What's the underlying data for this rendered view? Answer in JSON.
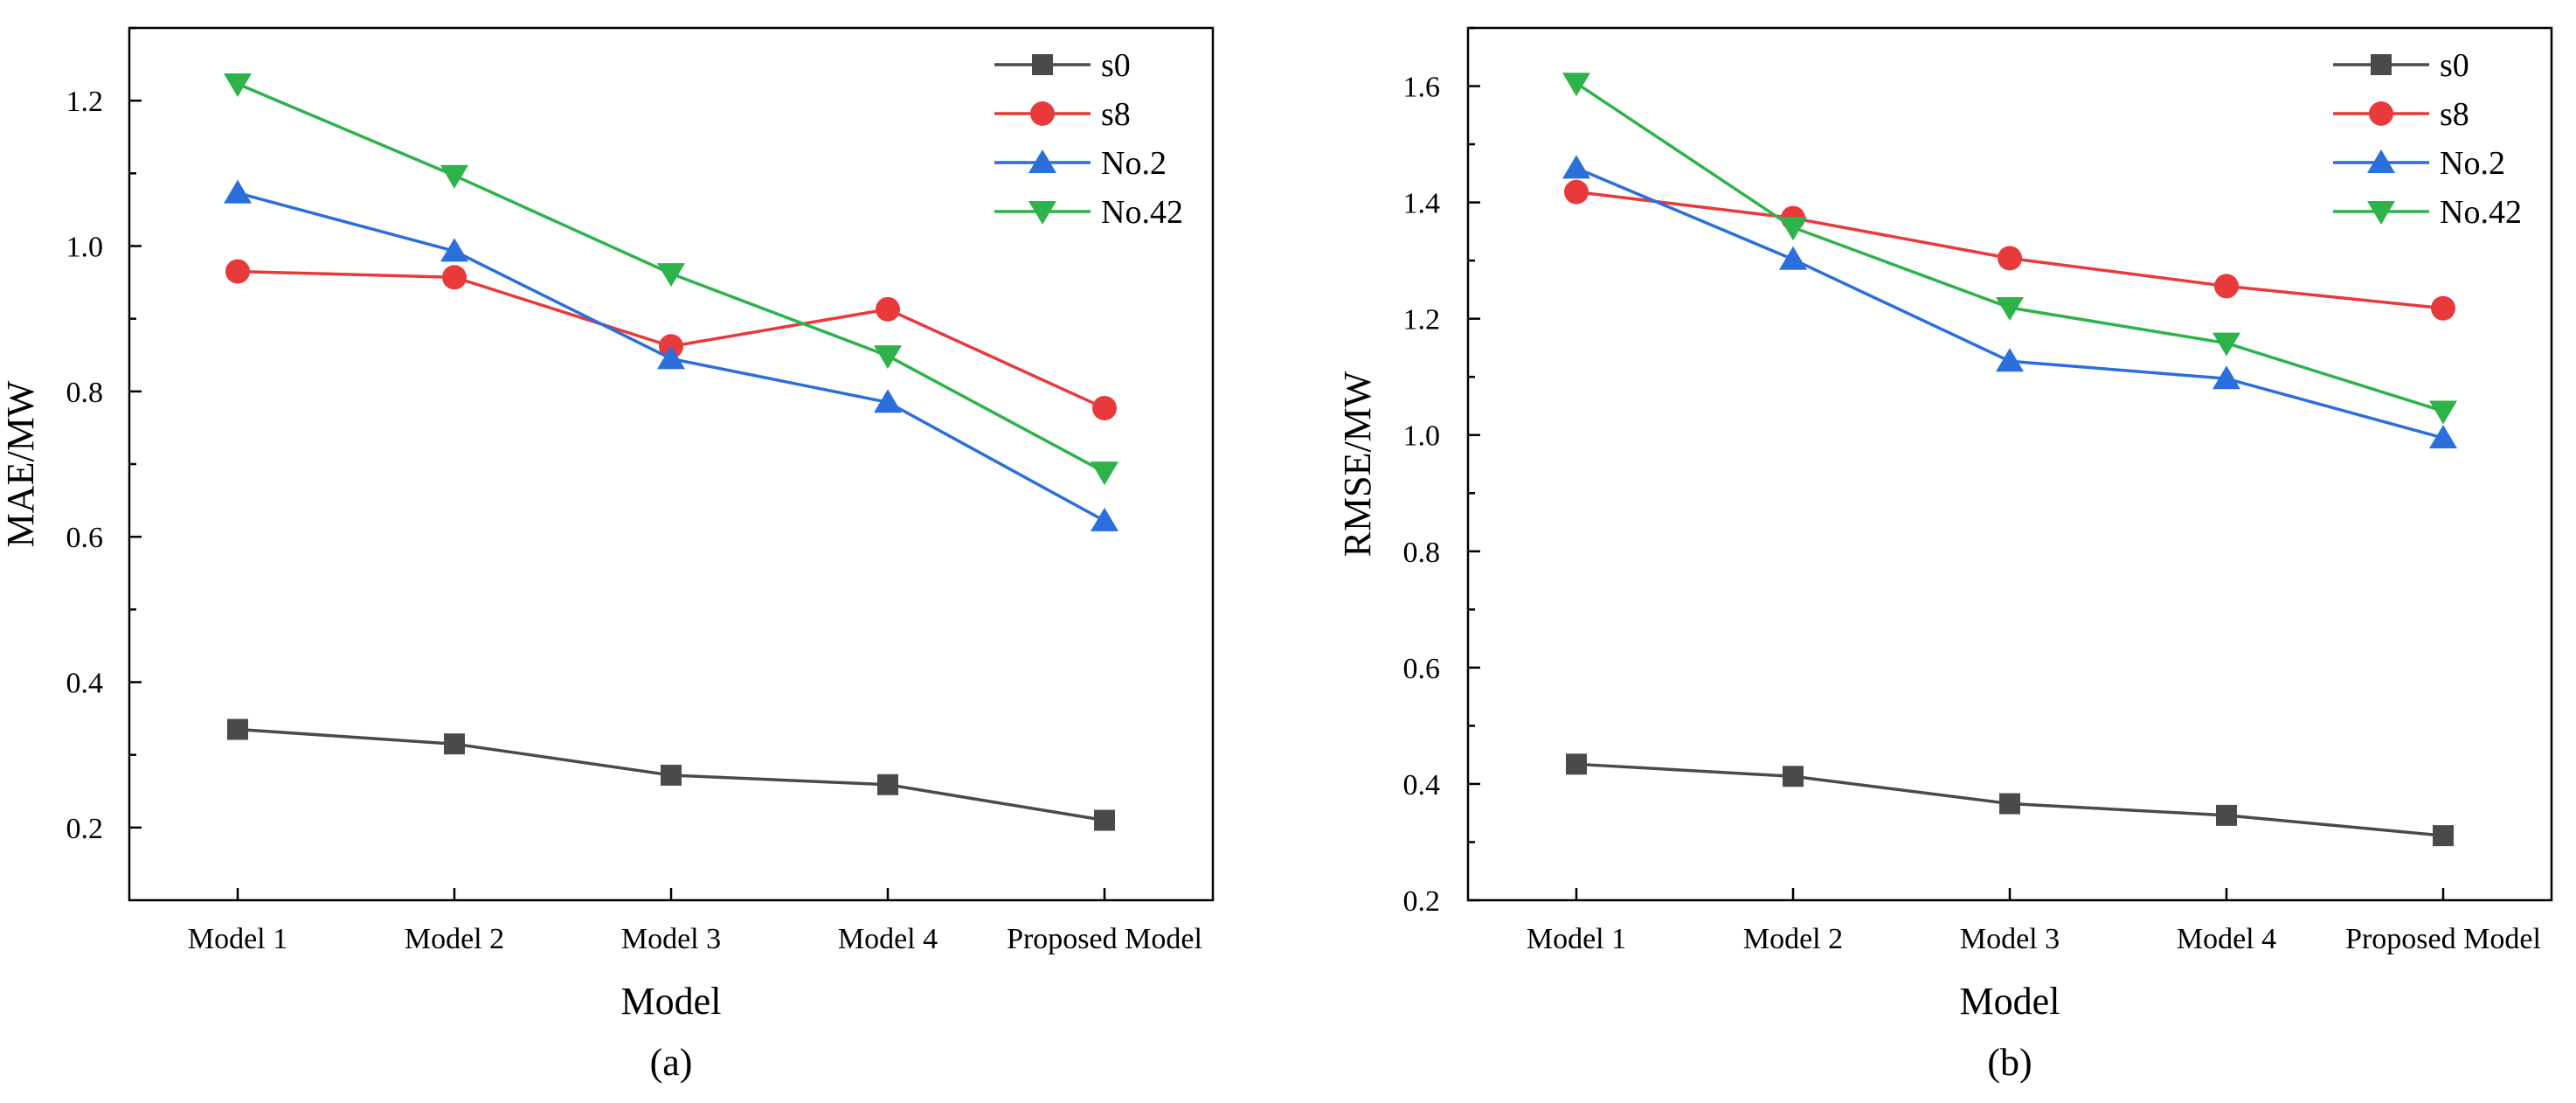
{
  "chart_data": [
    {
      "type": "line",
      "panel_label": "(a)",
      "xlabel": "Model",
      "ylabel": "MAE/MW",
      "categories": [
        "Model 1",
        "Model 2",
        "Model 3",
        "Model 4",
        "Proposed Model"
      ],
      "ylim": [
        0.1,
        1.3
      ],
      "yticks": [
        0.2,
        0.4,
        0.6,
        0.8,
        1.0,
        1.2
      ],
      "ytick_labels": [
        "0.2",
        "0.4",
        "0.6",
        "0.8",
        "1.0",
        "1.2"
      ],
      "grid": false,
      "legend_position": "top-right",
      "series": [
        {
          "name": "s0",
          "marker": "square",
          "color": "#4a4a4a",
          "values": [
            0.335,
            0.315,
            0.272,
            0.259,
            0.21
          ]
        },
        {
          "name": "s8",
          "marker": "circle",
          "color": "#e83a3a",
          "values": [
            0.965,
            0.957,
            0.862,
            0.913,
            0.777
          ]
        },
        {
          "name": "No.2",
          "marker": "triangle-up",
          "color": "#2a6fdb",
          "values": [
            1.073,
            0.993,
            0.845,
            0.785,
            0.622
          ]
        },
        {
          "name": "No.42",
          "marker": "triangle-down",
          "color": "#2db34a",
          "values": [
            1.223,
            1.097,
            0.962,
            0.849,
            0.689
          ]
        }
      ]
    },
    {
      "type": "line",
      "panel_label": "(b)",
      "xlabel": "Model",
      "ylabel": "RMSE/MW",
      "categories": [
        "Model 1",
        "Model 2",
        "Model 3",
        "Model 4",
        "Proposed Model"
      ],
      "ylim": [
        0.2,
        1.7
      ],
      "yticks": [
        0.2,
        0.4,
        0.6,
        0.8,
        1.0,
        1.2,
        1.4,
        1.6
      ],
      "ytick_labels": [
        "0.2",
        "0.4",
        "0.6",
        "0.8",
        "1.0",
        "1.2",
        "1.4",
        "1.6"
      ],
      "grid": false,
      "legend_position": "top-right",
      "series": [
        {
          "name": "s0",
          "marker": "square",
          "color": "#4a4a4a",
          "values": [
            0.434,
            0.413,
            0.366,
            0.346,
            0.311
          ]
        },
        {
          "name": "s8",
          "marker": "circle",
          "color": "#e83a3a",
          "values": [
            1.418,
            1.373,
            1.304,
            1.256,
            1.218
          ]
        },
        {
          "name": "No.2",
          "marker": "triangle-up",
          "color": "#2a6fdb",
          "values": [
            1.459,
            1.302,
            1.127,
            1.097,
            0.995
          ]
        },
        {
          "name": "No.42",
          "marker": "triangle-down",
          "color": "#2db34a",
          "values": [
            1.605,
            1.357,
            1.219,
            1.158,
            1.041
          ]
        }
      ]
    }
  ]
}
